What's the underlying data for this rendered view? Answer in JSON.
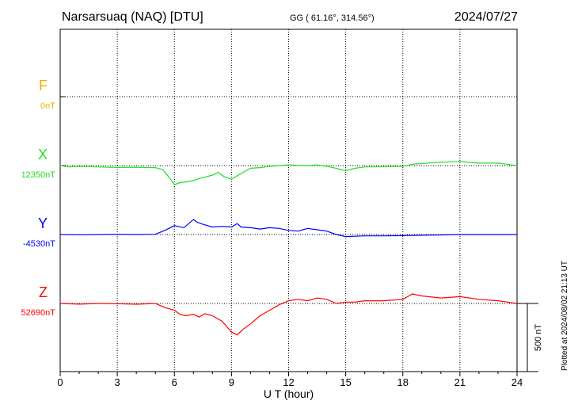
{
  "header": {
    "station": "Narsarsuaq (NAQ)  [DTU]",
    "coords": "GG ( 61.16°, 314.56°)",
    "date": "2024/07/27"
  },
  "plotted_note": "Plotted at 2024/08/02 21:13 UT",
  "chart_data": {
    "type": "line",
    "title": "Narsarsuaq (NAQ)  [DTU]",
    "xlabel": "U T (hour)",
    "xlim": [
      0,
      24
    ],
    "x_ticks": [
      "0",
      "3",
      "6",
      "9",
      "12",
      "15",
      "18",
      "21",
      "24"
    ],
    "scale_bar": {
      "label": "500 nT",
      "value": 500
    },
    "grid": true,
    "series": [
      {
        "name": "F",
        "baseline_label": "0nT",
        "color": "#f0b000",
        "x": [],
        "values": []
      },
      {
        "name": "X",
        "baseline_label": "12350nT",
        "color": "#22dd22",
        "x": [
          0,
          0.5,
          1,
          2,
          3,
          4,
          5,
          5.4,
          5.8,
          6,
          6.3,
          6.6,
          7,
          7.3,
          7.6,
          8,
          8.3,
          8.6,
          9,
          9.3,
          9.6,
          10,
          10.5,
          11,
          11.5,
          12,
          12.5,
          13,
          13.5,
          14,
          14.5,
          15,
          15.5,
          16,
          17,
          18,
          18.5,
          19,
          20,
          21,
          22,
          23,
          24
        ],
        "values": [
          12350,
          12340,
          12345,
          12340,
          12336,
          12338,
          12335,
          12320,
          12250,
          12210,
          12225,
          12230,
          12240,
          12255,
          12265,
          12280,
          12300,
          12270,
          12250,
          12275,
          12300,
          12330,
          12335,
          12345,
          12350,
          12355,
          12352,
          12350,
          12355,
          12345,
          12330,
          12312,
          12330,
          12340,
          12342,
          12345,
          12360,
          12365,
          12375,
          12380,
          12368,
          12368,
          12350
        ]
      },
      {
        "name": "Y",
        "baseline_label": "-4530nT",
        "color": "#0000ff",
        "x": [
          0,
          1,
          2,
          3,
          4,
          5,
          5.5,
          6,
          6.5,
          7,
          7.2,
          7.5,
          8,
          8.5,
          9,
          9.3,
          9.5,
          10,
          10.5,
          11,
          11.5,
          12,
          12.5,
          13,
          13.5,
          14,
          14.5,
          15,
          16,
          17,
          18,
          19,
          20,
          21,
          22,
          23,
          24
        ],
        "values": [
          -4530,
          -4532,
          -4530,
          -4528,
          -4530,
          -4528,
          -4500,
          -4465,
          -4480,
          -4420,
          -4440,
          -4455,
          -4475,
          -4470,
          -4475,
          -4450,
          -4475,
          -4480,
          -4490,
          -4480,
          -4485,
          -4500,
          -4505,
          -4485,
          -4495,
          -4505,
          -4530,
          -4545,
          -4540,
          -4540,
          -4538,
          -4535,
          -4533,
          -4530,
          -4530,
          -4530,
          -4530
        ]
      },
      {
        "name": "Z",
        "baseline_label": "52690nT",
        "color": "#ff0000",
        "x": [
          0,
          1,
          2,
          3,
          4,
          5,
          5.5,
          6,
          6.3,
          6.6,
          7,
          7.3,
          7.6,
          8,
          8.5,
          9,
          9.3,
          9.6,
          10,
          10.5,
          11,
          11.5,
          12,
          12.5,
          13,
          13.5,
          14,
          14.5,
          15,
          15.5,
          16,
          17,
          18,
          18.5,
          19,
          20,
          21,
          22,
          23,
          24
        ],
        "values": [
          52690,
          52685,
          52690,
          52688,
          52684,
          52690,
          52660,
          52640,
          52610,
          52600,
          52610,
          52590,
          52615,
          52600,
          52560,
          52480,
          52460,
          52500,
          52540,
          52600,
          52640,
          52680,
          52710,
          52720,
          52710,
          52730,
          52720,
          52690,
          52700,
          52700,
          52710,
          52710,
          52720,
          52760,
          52745,
          52730,
          52740,
          52720,
          52710,
          52690
        ]
      }
    ]
  }
}
